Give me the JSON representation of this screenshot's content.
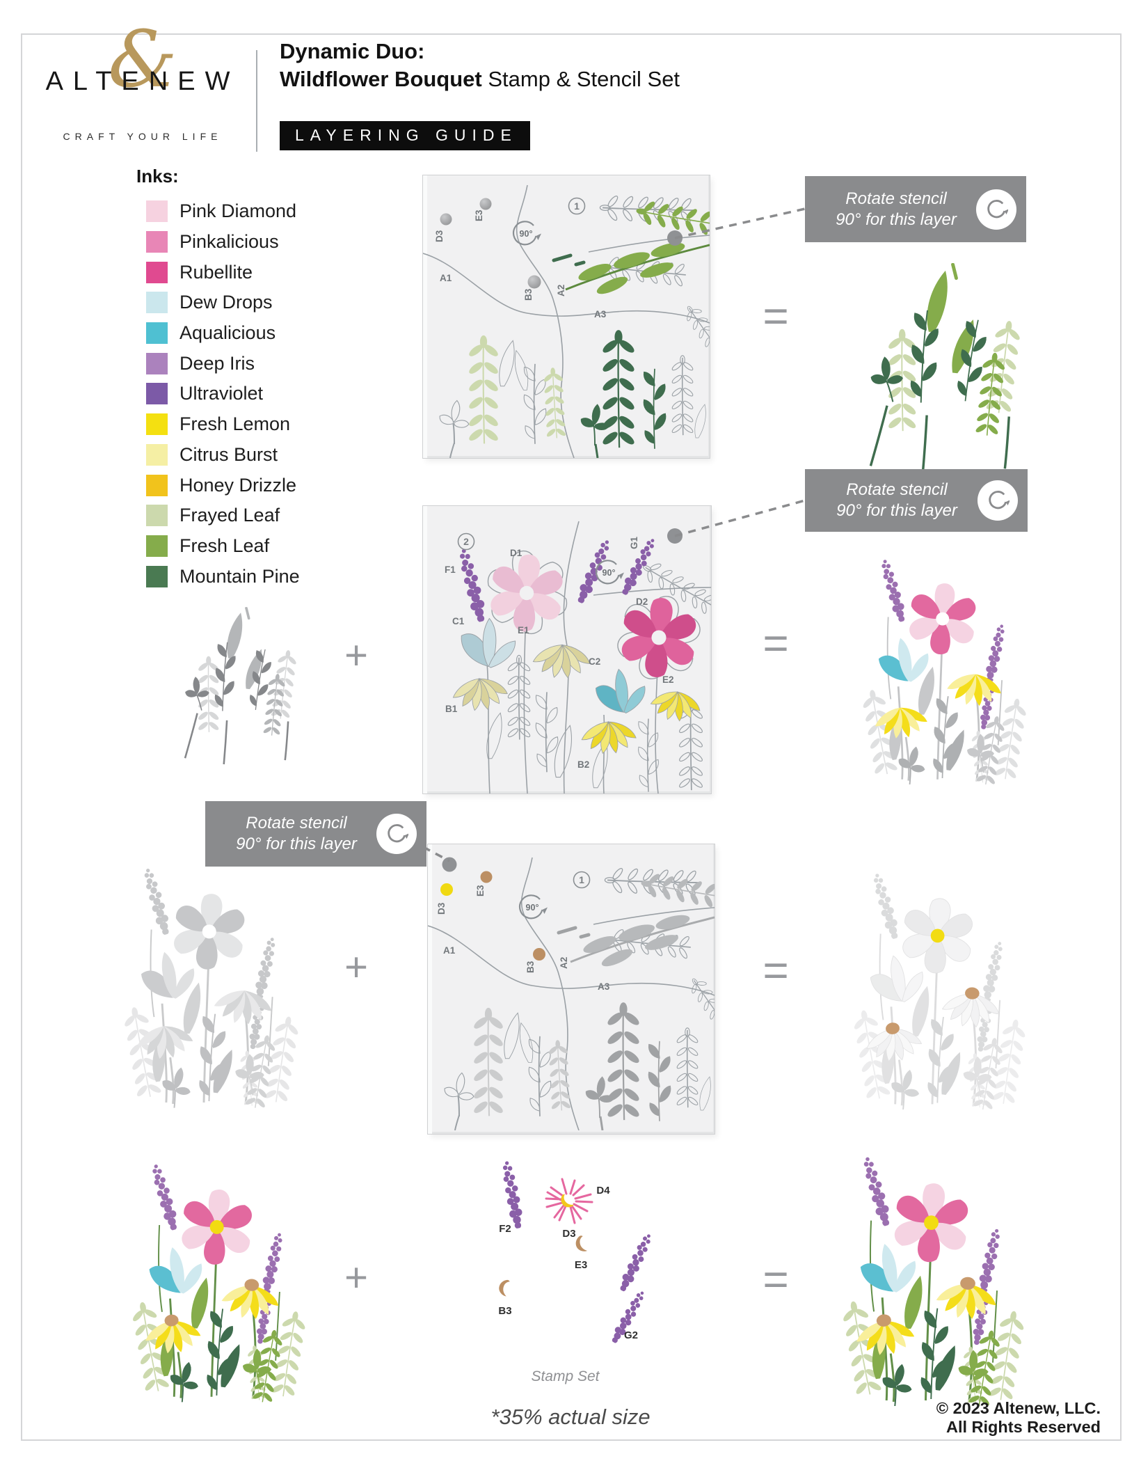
{
  "header": {
    "brand_letters": "ALTENEW",
    "brand_ampersand": "&",
    "tagline": "CRAFT YOUR LIFE",
    "title_line1": "Dynamic Duo:",
    "title_bold": "Wildflower Bouquet",
    "title_rest": " Stamp & Stencil Set",
    "badge": "LAYERING GUIDE"
  },
  "inks": {
    "heading": "Inks:",
    "items": [
      {
        "name": "Pink Diamond",
        "color": "#f6d2e0"
      },
      {
        "name": "Pinkalicious",
        "color": "#e886b6"
      },
      {
        "name": "Rubellite",
        "color": "#e04a90"
      },
      {
        "name": "Dew Drops",
        "color": "#cbe7ed"
      },
      {
        "name": "Aqualicious",
        "color": "#4fc0d2"
      },
      {
        "name": "Deep Iris",
        "color": "#ab82bd"
      },
      {
        "name": "Ultraviolet",
        "color": "#7c5aa7"
      },
      {
        "name": "Fresh Lemon",
        "color": "#f4e011"
      },
      {
        "name": "Citrus Burst",
        "color": "#f5efa4"
      },
      {
        "name": "Honey Drizzle",
        "color": "#f1c31c"
      },
      {
        "name": "Frayed Leaf",
        "color": "#ccd9ad"
      },
      {
        "name": "Fresh Leaf",
        "color": "#85ac4b"
      },
      {
        "name": "Mountain Pine",
        "color": "#4a7a52"
      }
    ]
  },
  "callout": {
    "line1": "Rotate stencil",
    "line2": "90° for this layer"
  },
  "panel1": {
    "step": "1",
    "rotation": "90°",
    "labels": {
      "d3": "D3",
      "e3": "E3",
      "a1": "A1",
      "b3": "B3",
      "a2": "A2",
      "a3": "A3"
    }
  },
  "panel2": {
    "step": "2",
    "rotation": "90°",
    "labels": {
      "f1": "F1",
      "d1": "D1",
      "c1": "C1",
      "e1": "E1",
      "b1": "B1",
      "g1": "G1",
      "d2": "D2",
      "c2": "C2",
      "e2": "E2",
      "b2": "B2"
    }
  },
  "panel3": {
    "step": "1",
    "rotation": "90°",
    "labels": {
      "d3": "D3",
      "e3": "E3",
      "a1": "A1",
      "b3": "B3",
      "a2": "A2",
      "a3": "A3"
    }
  },
  "operators": {
    "plus": "+",
    "equals": "="
  },
  "stamp_set": {
    "caption": "Stamp Set",
    "labels": {
      "f2": "F2",
      "d4": "D4",
      "d3": "D3",
      "e3": "E3",
      "b3": "B3",
      "g2": "G2"
    }
  },
  "footer": {
    "scale_note": "*35% actual size",
    "copyright1": "© 2023 Altenew, LLC.",
    "copyright2": "All Rights Reserved"
  }
}
